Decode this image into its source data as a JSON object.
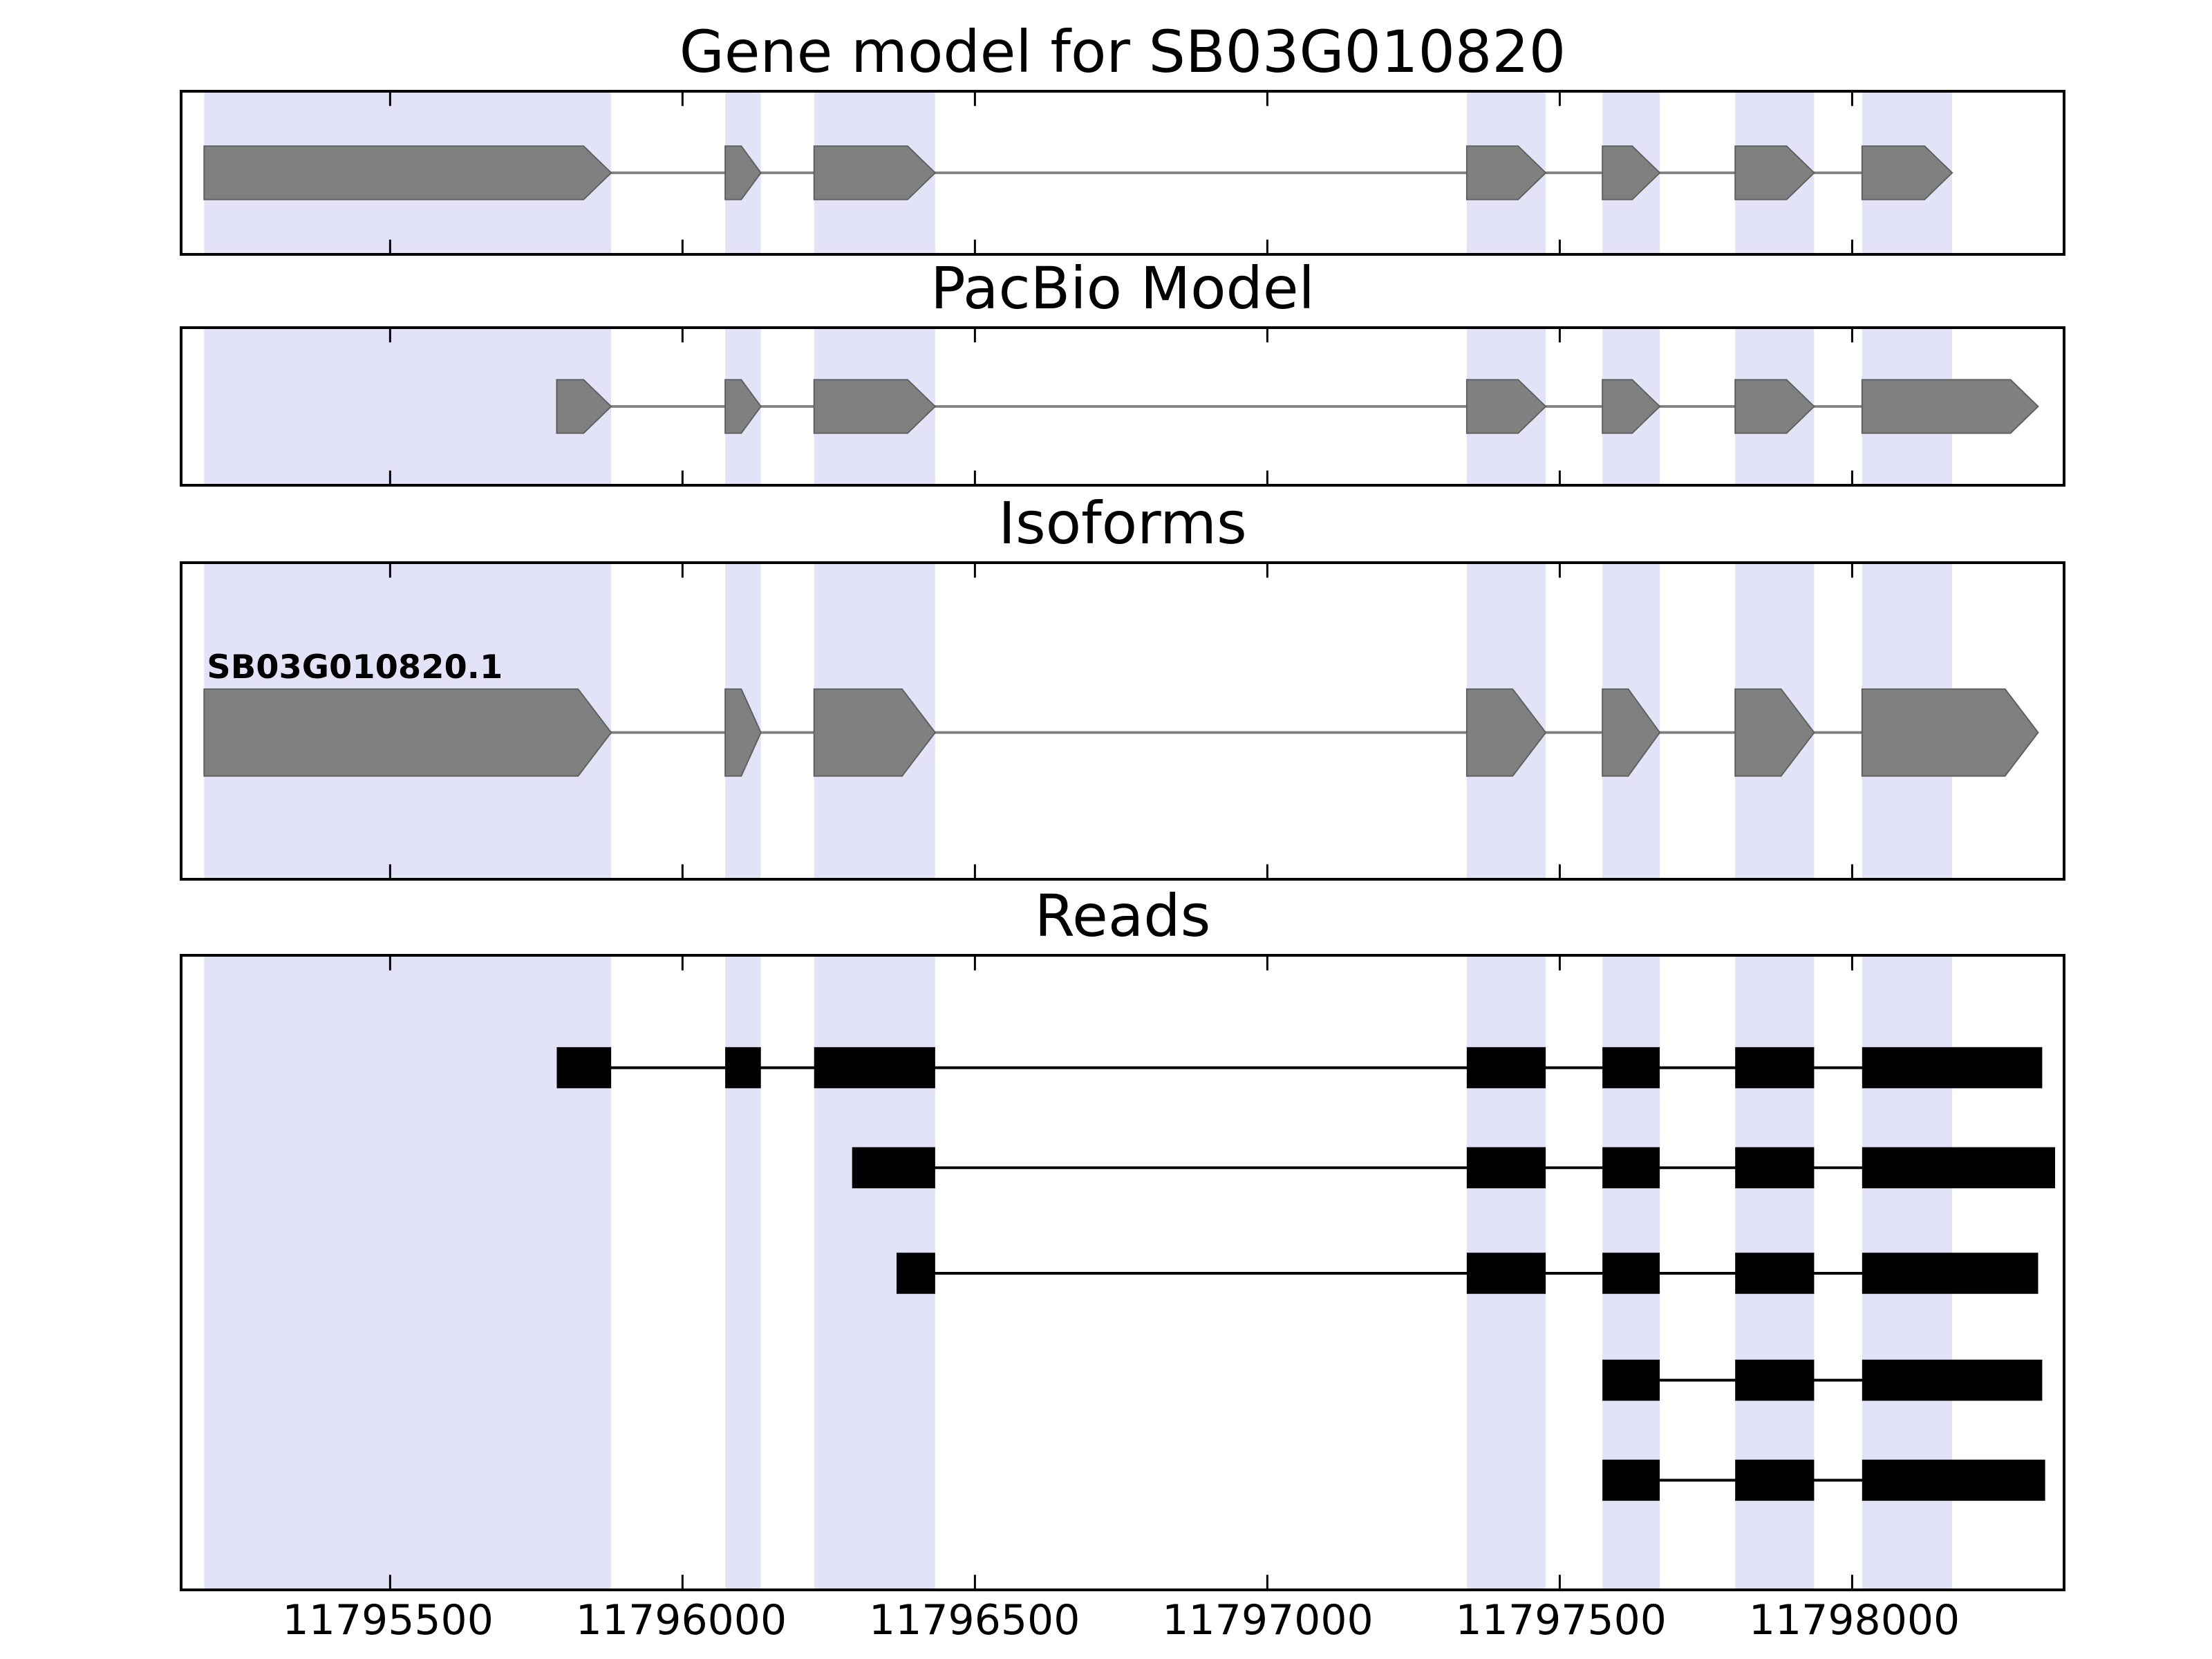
{
  "colors": {
    "background": "#ffffff",
    "panel_border": "#000000",
    "highlight_band": "#e3e3f8",
    "gene_fill": "#808080",
    "gene_edge": "#606060",
    "intron_line": "#808080",
    "read_fill": "#000000",
    "text": "#000000"
  },
  "chart_data": {
    "type": "genome-browser",
    "title": "Gene model for SB03G010820",
    "x_axis": {
      "domain": [
        11795145,
        11798360
      ],
      "ticks": [
        11795500,
        11796000,
        11796500,
        11797000,
        11797500,
        11798000
      ],
      "tick_labels": [
        "11795500",
        "11796000",
        "11796500",
        "11797000",
        "11797500",
        "11798000"
      ]
    },
    "highlight_regions": [
      [
        11795182,
        11795878
      ],
      [
        11796073,
        11796134
      ],
      [
        11796225,
        11796432
      ],
      [
        11797341,
        11797476
      ],
      [
        11797573,
        11797671
      ],
      [
        11797800,
        11797935
      ],
      [
        11798017,
        11798171
      ]
    ],
    "panels": [
      {
        "title": "Gene model for SB03G010820",
        "rows": [
          {
            "label": "",
            "style": "model",
            "exons": [
              [
                11795182,
                11795878
              ],
              [
                11796073,
                11796134
              ],
              [
                11796225,
                11796432
              ],
              [
                11797341,
                11797476
              ],
              [
                11797573,
                11797671
              ],
              [
                11797800,
                11797935
              ],
              [
                11798017,
                11798171
              ]
            ]
          }
        ]
      },
      {
        "title": "PacBio Model",
        "rows": [
          {
            "label": "",
            "style": "model",
            "exons": [
              [
                11795785,
                11795878
              ],
              [
                11796073,
                11796134
              ],
              [
                11796225,
                11796432
              ],
              [
                11797341,
                11797476
              ],
              [
                11797573,
                11797671
              ],
              [
                11797800,
                11797935
              ],
              [
                11798017,
                11798318
              ]
            ]
          }
        ]
      },
      {
        "title": "Isoforms",
        "rows": [
          {
            "label": "SB03G010820.1",
            "style": "model",
            "exons": [
              [
                11795182,
                11795878
              ],
              [
                11796073,
                11796134
              ],
              [
                11796225,
                11796432
              ],
              [
                11797341,
                11797476
              ],
              [
                11797573,
                11797671
              ],
              [
                11797800,
                11797935
              ],
              [
                11798017,
                11798318
              ]
            ]
          }
        ]
      },
      {
        "title": "Reads",
        "rows": [
          {
            "label": "",
            "style": "read",
            "exons": [
              [
                11795785,
                11795878
              ],
              [
                11796073,
                11796134
              ],
              [
                11796225,
                11796432
              ],
              [
                11797341,
                11797476
              ],
              [
                11797573,
                11797671
              ],
              [
                11797800,
                11797935
              ],
              [
                11798017,
                11798325
              ]
            ]
          },
          {
            "label": "",
            "style": "read",
            "exons": [
              [
                11796290,
                11796432
              ],
              [
                11797341,
                11797476
              ],
              [
                11797573,
                11797671
              ],
              [
                11797800,
                11797935
              ],
              [
                11798017,
                11798347
              ]
            ]
          },
          {
            "label": "",
            "style": "read",
            "exons": [
              [
                11796366,
                11796432
              ],
              [
                11797341,
                11797476
              ],
              [
                11797573,
                11797671
              ],
              [
                11797800,
                11797935
              ],
              [
                11798017,
                11798318
              ]
            ]
          },
          {
            "label": "",
            "style": "read",
            "exons": [
              [
                11797573,
                11797671
              ],
              [
                11797800,
                11797935
              ],
              [
                11798017,
                11798325
              ]
            ]
          },
          {
            "label": "",
            "style": "read",
            "exons": [
              [
                11797573,
                11797671
              ],
              [
                11797800,
                11797935
              ],
              [
                11798017,
                11798330
              ]
            ]
          }
        ]
      }
    ]
  }
}
